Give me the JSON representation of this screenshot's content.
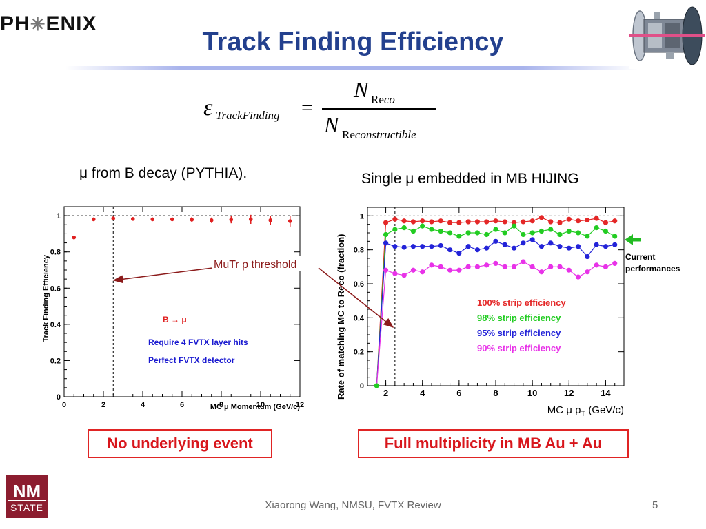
{
  "header": {
    "logo_text": "PH✳ENIX",
    "logo_left": "PH",
    "logo_right": "ENIX",
    "title": "Track Finding Efficiency"
  },
  "equation": {
    "lhs_symbol": "ε",
    "lhs_subscript": "TrackFinding",
    "equals": "=",
    "numerator_symbol": "N",
    "numerator_subscript_upright": "Re",
    "numerator_subscript_italic": "co",
    "denominator_symbol": "N",
    "denominator_subscript_upright": "Re",
    "denominator_subscript_italic": "constructible"
  },
  "headings": {
    "left": "μ from B decay (PYTHIA).",
    "right": "Single μ embedded in MB HIJING"
  },
  "boxes": {
    "left": "No underlying event",
    "right": "Full multiplicity in MB Au + Au"
  },
  "footer": {
    "text": "Xiaorong Wang, NMSU, FVTX Review",
    "page": "5"
  },
  "nm_logo": {
    "line1": "NM",
    "line2": "STATE"
  },
  "colors": {
    "title": "#23408e",
    "box_border": "#e02424",
    "box_text": "#d8161c",
    "arrow": "#8b1a1a",
    "nm_logo": "#8c1d2f"
  },
  "chart_data": [
    {
      "type": "scatter",
      "ylabel": "Track Finding Efficiency",
      "xlabel": "MC μ Momentum (GeV/c)",
      "xlim": [
        0,
        12
      ],
      "ylim": [
        0,
        1.05
      ],
      "xticks": [
        "0",
        "2",
        "4",
        "6",
        "8",
        "10",
        "12"
      ],
      "yticks": [
        "0",
        "0.2",
        "0.4",
        "0.6",
        "0.8",
        "1"
      ],
      "reference_line_y": 1.0,
      "threshold_x": 2.5,
      "series": [
        {
          "color": "#e02020",
          "points": [
            {
              "x": 0.5,
              "y": 0.88,
              "err": 0
            },
            {
              "x": 1.5,
              "y": 0.98,
              "err": 0
            },
            {
              "x": 2.5,
              "y": 0.985,
              "err": 0.01
            },
            {
              "x": 3.5,
              "y": 0.982,
              "err": 0.01
            },
            {
              "x": 4.5,
              "y": 0.98,
              "err": 0.01
            },
            {
              "x": 5.5,
              "y": 0.98,
              "err": 0.01
            },
            {
              "x": 6.5,
              "y": 0.978,
              "err": 0.015
            },
            {
              "x": 7.5,
              "y": 0.975,
              "err": 0.015
            },
            {
              "x": 8.5,
              "y": 0.978,
              "err": 0.02
            },
            {
              "x": 9.5,
              "y": 0.98,
              "err": 0.025
            },
            {
              "x": 10.5,
              "y": 0.975,
              "err": 0.025
            },
            {
              "x": 11.5,
              "y": 0.97,
              "err": 0.03
            }
          ]
        }
      ],
      "annotations": {
        "decay": "B → μ",
        "note1": "Require 4 FVTX layer hits",
        "note2": "Perfect FVTX detector",
        "threshold_label": "MuTr p threshold"
      }
    },
    {
      "type": "line",
      "ylabel": "Rate of matching MC to Reco (fraction)",
      "xlabel": "MC μ p",
      "xlabel_sub": "T",
      "xlabel_unit": " (GeV/c)",
      "xlim": [
        1.0,
        15.0
      ],
      "ylim": [
        0,
        1.05
      ],
      "xticks": [
        "2",
        "4",
        "6",
        "8",
        "10",
        "12",
        "14"
      ],
      "yticks": [
        "0",
        "0.2",
        "0.4",
        "0.6",
        "0.8",
        "1"
      ],
      "reference_line_y": 1.0,
      "threshold_x": 2.5,
      "x": [
        1.5,
        2.0,
        2.5,
        3.0,
        3.5,
        4.0,
        4.5,
        5.0,
        5.5,
        6.0,
        6.5,
        7.0,
        7.5,
        8.0,
        8.5,
        9.0,
        9.5,
        10.0,
        10.5,
        11.0,
        11.5,
        12.0,
        12.5,
        13.0,
        13.5,
        14.0,
        14.5
      ],
      "series": [
        {
          "name": "100% strip efficiency",
          "color": "#e42727",
          "values": [
            0.0,
            0.96,
            0.98,
            0.97,
            0.965,
            0.97,
            0.965,
            0.97,
            0.96,
            0.96,
            0.965,
            0.965,
            0.965,
            0.97,
            0.965,
            0.96,
            0.965,
            0.97,
            0.99,
            0.965,
            0.96,
            0.98,
            0.97,
            0.975,
            0.985,
            0.96,
            0.97
          ]
        },
        {
          "name": "98% strip efficiency",
          "color": "#22cc22",
          "values": [
            0.0,
            0.89,
            0.92,
            0.93,
            0.91,
            0.94,
            0.92,
            0.91,
            0.9,
            0.88,
            0.9,
            0.9,
            0.89,
            0.92,
            0.9,
            0.94,
            0.89,
            0.9,
            0.91,
            0.92,
            0.89,
            0.91,
            0.9,
            0.88,
            0.93,
            0.91,
            0.88
          ]
        },
        {
          "name": "95% strip efficiency",
          "color": "#2323d8",
          "values": [
            0.0,
            0.84,
            0.82,
            0.815,
            0.82,
            0.82,
            0.82,
            0.825,
            0.8,
            0.78,
            0.82,
            0.8,
            0.81,
            0.85,
            0.83,
            0.81,
            0.84,
            0.86,
            0.82,
            0.84,
            0.82,
            0.81,
            0.82,
            0.76,
            0.83,
            0.82,
            0.83
          ]
        },
        {
          "name": "90% strip efficiency",
          "color": "#e832e8",
          "values": [
            0.0,
            0.68,
            0.66,
            0.65,
            0.68,
            0.67,
            0.71,
            0.7,
            0.68,
            0.68,
            0.7,
            0.7,
            0.71,
            0.72,
            0.7,
            0.7,
            0.73,
            0.7,
            0.67,
            0.7,
            0.7,
            0.68,
            0.64,
            0.67,
            0.71,
            0.7,
            0.72
          ]
        }
      ],
      "annotations": {
        "current_label_line1": "Current",
        "current_label_line2": "performances"
      }
    }
  ]
}
